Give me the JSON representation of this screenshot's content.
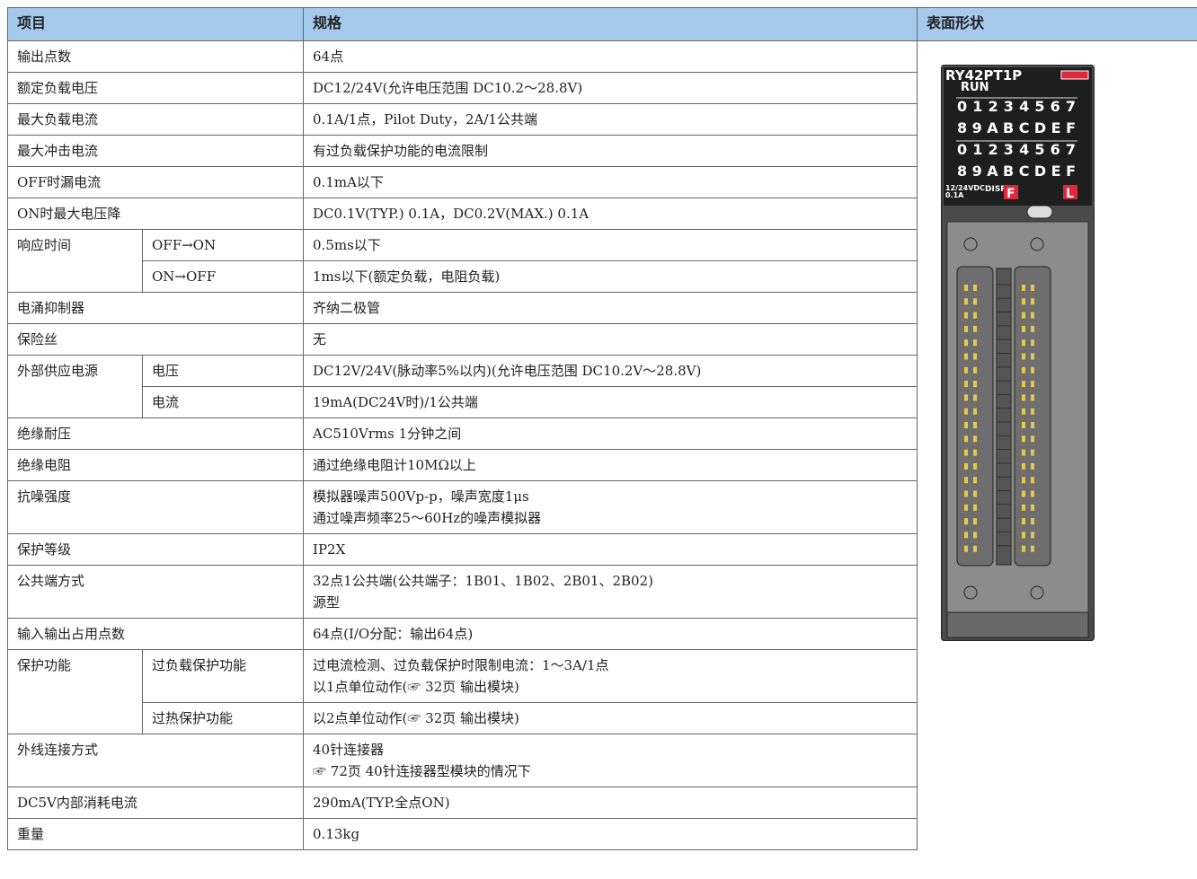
{
  "header": {
    "item": "项目",
    "spec": "规格",
    "shape": "表面形状"
  },
  "rows": [
    {
      "item": "输出点数",
      "spec": [
        "64点"
      ]
    },
    {
      "item": "额定负载电压",
      "spec": [
        "DC12/24V(允许电压范围 DC10.2～28.8V)"
      ]
    },
    {
      "item": "最大负载电流",
      "spec": [
        "0.1A/1点，Pilot Duty，2A/1公共端"
      ]
    },
    {
      "item": "最大冲击电流",
      "spec": [
        "有过负载保护功能的电流限制"
      ]
    },
    {
      "item": "OFF时漏电流",
      "spec": [
        "0.1mA以下"
      ]
    },
    {
      "item": "ON时最大电压降",
      "spec": [
        "DC0.1V(TYP.) 0.1A，DC0.2V(MAX.) 0.1A"
      ]
    },
    {
      "item": "响应时间",
      "sub": [
        {
          "name": "OFF→ON",
          "spec": [
            "0.5ms以下"
          ]
        },
        {
          "name": "ON→OFF",
          "spec": [
            "1ms以下(额定负载，电阻负载)"
          ]
        }
      ]
    },
    {
      "item": "电涌抑制器",
      "spec": [
        "齐纳二极管"
      ]
    },
    {
      "item": "保险丝",
      "spec": [
        "无"
      ]
    },
    {
      "item": "外部供应电源",
      "sub": [
        {
          "name": "电压",
          "spec": [
            "DC12V/24V(脉动率5%以内)(允许电压范围 DC10.2V～28.8V)"
          ]
        },
        {
          "name": "电流",
          "spec": [
            "19mA(DC24V时)/1公共端"
          ]
        }
      ]
    },
    {
      "item": "绝缘耐压",
      "spec": [
        "AC510Vrms 1分钟之间"
      ]
    },
    {
      "item": "绝缘电阻",
      "spec": [
        "通过绝缘电阻计10MΩ以上"
      ]
    },
    {
      "item": "抗噪强度",
      "spec": [
        "模拟器噪声500Vp-p，噪声宽度1μs",
        "通过噪声频率25～60Hz的噪声模拟器"
      ]
    },
    {
      "item": "保护等级",
      "spec": [
        "IP2X"
      ]
    },
    {
      "item": "公共端方式",
      "spec": [
        "32点1公共端(公共端子：1B01、1B02、2B01、2B02)",
        "源型"
      ]
    },
    {
      "item": "输入输出占用点数",
      "spec": [
        "64点(I/O分配：输出64点)"
      ]
    },
    {
      "item": "保护功能",
      "sub": [
        {
          "name": "过负载保护功能",
          "spec": [
            "过电流检测、过负载保护时限制电流：1～3A/1点",
            "以1点单位动作(☞ 32页 输出模块)"
          ]
        },
        {
          "name": "过热保护功能",
          "spec": [
            "以2点单位动作(☞ 32页 输出模块)"
          ]
        }
      ]
    },
    {
      "item": "外线连接方式",
      "spec": [
        "40针连接器",
        "☞ 72页 40针连接器型模块的情况下"
      ]
    },
    {
      "item": "DC5V内部消耗电流",
      "spec": [
        "290mA(TYP.全点ON)"
      ]
    },
    {
      "item": "重量",
      "spec": [
        "0.13kg"
      ]
    }
  ],
  "module": {
    "model": "RY42PT1P",
    "run": "RUN",
    "led_rows": [
      "0 1 2 3 4 5 6 7",
      "8 9 A B C D E F",
      "0 1 2 3 4 5 6 7",
      "8 9 A B C D E F"
    ],
    "rating": [
      "12/24VDC",
      "0.1A"
    ],
    "disp": "DISP",
    "f": "F",
    "l": "L"
  }
}
